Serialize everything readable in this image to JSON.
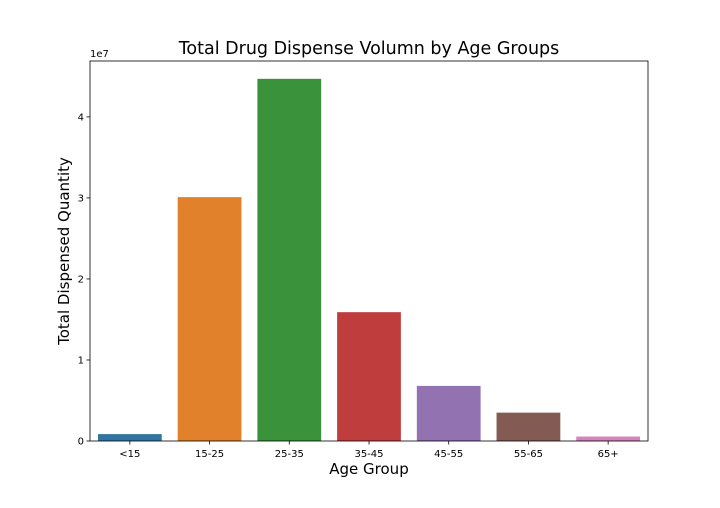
{
  "chart_data": {
    "type": "bar",
    "title": "Total Drug Dispense Volumn by Age Groups",
    "xlabel": "Age Group",
    "ylabel": "Total Dispensed Quantity",
    "y_offset_label": "1e7",
    "categories": [
      "<15",
      "15-25",
      "25-35",
      "35-45",
      "45-55",
      "55-65",
      "65+"
    ],
    "values": [
      850000,
      30100000,
      44700000,
      15900000,
      6800000,
      3500000,
      550000
    ],
    "ylim": [
      0,
      46900000
    ],
    "yticks": [
      0,
      10000000,
      20000000,
      30000000,
      40000000
    ],
    "ytick_labels": [
      "0",
      "1",
      "2",
      "3",
      "4"
    ],
    "colors": [
      "#3274a1",
      "#e1812c",
      "#3a923a",
      "#c03d3e",
      "#9372b2",
      "#845b53",
      "#d684bd"
    ],
    "grid": false,
    "legend": "none"
  }
}
